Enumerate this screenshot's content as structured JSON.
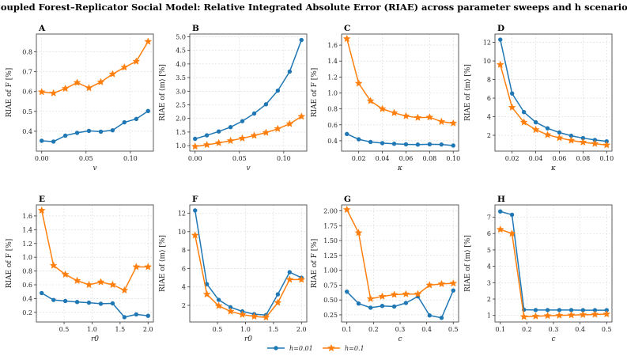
{
  "figure_title": "Coupled Forest–Replicator Social Model: Relative Integrated Absolute Error (RIAE) across parameter sweeps and h scenarios",
  "legend": [
    {
      "name": "h=0.01",
      "color": "#1f77b4",
      "marker": "circle"
    },
    {
      "name": "h=0.1",
      "color": "#ff7f0e",
      "marker": "star"
    }
  ],
  "chart_data": [
    {
      "panel": "A",
      "type": "line",
      "xlabel": "v",
      "ylabel": "RIAE of F [%]",
      "xlim": [
        -0.006,
        0.126
      ],
      "ylim": [
        0.3,
        0.89
      ],
      "xticks": [
        0.0,
        0.05,
        0.1
      ],
      "xtick_labels": [
        "0.00",
        "0.05",
        "0.10"
      ],
      "yticks": [
        0.4,
        0.5,
        0.6,
        0.7,
        0.8
      ],
      "ytick_labels": [
        "0.4",
        "0.5",
        "0.6",
        "0.7",
        "0.8"
      ],
      "x": [
        0.0,
        0.0133,
        0.0267,
        0.04,
        0.0533,
        0.0667,
        0.08,
        0.0933,
        0.1067,
        0.12
      ],
      "series": [
        {
          "name": "h=0.01",
          "values": [
            0.352,
            0.348,
            0.378,
            0.392,
            0.402,
            0.398,
            0.405,
            0.445,
            0.462,
            0.502
          ]
        },
        {
          "name": "h=0.1",
          "values": [
            0.598,
            0.592,
            0.615,
            0.645,
            0.618,
            0.648,
            0.688,
            0.722,
            0.752,
            0.852
          ]
        }
      ]
    },
    {
      "panel": "B",
      "type": "line",
      "xlabel": "v",
      "ylabel": "RIAE of ⟨m⟩ [%]",
      "xlim": [
        -0.006,
        0.126
      ],
      "ylim": [
        0.8,
        5.1
      ],
      "xticks": [
        0.0,
        0.05,
        0.1
      ],
      "xtick_labels": [
        "0.00",
        "0.05",
        "0.10"
      ],
      "yticks": [
        1.0,
        1.5,
        2.0,
        2.5,
        3.0,
        3.5,
        4.0,
        4.5,
        5.0
      ],
      "ytick_labels": [
        "1.0",
        "1.5",
        "2.0",
        "2.5",
        "3.0",
        "3.5",
        "4.0",
        "4.5",
        "5.0"
      ],
      "x": [
        0.0,
        0.0133,
        0.0267,
        0.04,
        0.0533,
        0.0667,
        0.08,
        0.0933,
        0.1067,
        0.12
      ],
      "series": [
        {
          "name": "h=0.01",
          "values": [
            1.25,
            1.38,
            1.52,
            1.68,
            1.9,
            2.18,
            2.52,
            3.02,
            3.72,
            4.88
          ]
        },
        {
          "name": "h=0.1",
          "values": [
            0.97,
            1.03,
            1.1,
            1.18,
            1.27,
            1.37,
            1.48,
            1.62,
            1.8,
            2.07
          ]
        }
      ]
    },
    {
      "panel": "C",
      "type": "line",
      "xlabel": "κ",
      "ylabel": "RIAE of F [%]",
      "xlim": [
        0.0055,
        0.1045
      ],
      "ylim": [
        0.27,
        1.74
      ],
      "xticks": [
        0.02,
        0.04,
        0.06,
        0.08,
        0.1
      ],
      "xtick_labels": [
        "0.02",
        "0.04",
        "0.06",
        "0.08",
        "0.10"
      ],
      "yticks": [
        0.4,
        0.6,
        0.8,
        1.0,
        1.2,
        1.4,
        1.6
      ],
      "ytick_labels": [
        "0.4",
        "0.6",
        "0.8",
        "1.0",
        "1.2",
        "1.4",
        "1.6"
      ],
      "x": [
        0.01,
        0.02,
        0.03,
        0.04,
        0.05,
        0.06,
        0.07,
        0.08,
        0.09,
        0.1
      ],
      "series": [
        {
          "name": "h=0.01",
          "values": [
            0.485,
            0.418,
            0.385,
            0.37,
            0.362,
            0.355,
            0.352,
            0.356,
            0.353,
            0.34
          ]
        },
        {
          "name": "h=0.1",
          "values": [
            1.68,
            1.12,
            0.9,
            0.8,
            0.75,
            0.71,
            0.69,
            0.695,
            0.64,
            0.62
          ]
        }
      ]
    },
    {
      "panel": "D",
      "type": "line",
      "xlabel": "κ",
      "ylabel": "RIAE of ⟨m⟩ [%]",
      "xlim": [
        0.0055,
        0.1045
      ],
      "ylim": [
        0.3,
        12.9
      ],
      "xticks": [
        0.02,
        0.04,
        0.06,
        0.08,
        0.1
      ],
      "xtick_labels": [
        "0.02",
        "0.04",
        "0.06",
        "0.08",
        "0.10"
      ],
      "yticks": [
        2,
        4,
        6,
        8,
        10,
        12
      ],
      "ytick_labels": [
        "2",
        "4",
        "6",
        "8",
        "10",
        "12"
      ],
      "x": [
        0.01,
        0.02,
        0.03,
        0.04,
        0.05,
        0.06,
        0.07,
        0.08,
        0.09,
        0.1
      ],
      "series": [
        {
          "name": "h=0.01",
          "values": [
            12.3,
            6.5,
            4.5,
            3.4,
            2.75,
            2.3,
            1.95,
            1.7,
            1.5,
            1.35
          ]
        },
        {
          "name": "h=0.1",
          "values": [
            9.6,
            5.0,
            3.4,
            2.6,
            2.05,
            1.72,
            1.45,
            1.25,
            1.1,
            0.95
          ]
        }
      ]
    },
    {
      "panel": "E",
      "type": "line",
      "xlabel": "r0",
      "ylabel": "RIAE of F [%]",
      "xlim": [
        0.005,
        2.095
      ],
      "ylim": [
        0.06,
        1.76
      ],
      "xticks": [
        0.5,
        1.0,
        1.5,
        2.0
      ],
      "xtick_labels": [
        "0.5",
        "1.0",
        "1.5",
        "2.0"
      ],
      "yticks": [
        0.2,
        0.4,
        0.6,
        0.8,
        1.0,
        1.2,
        1.4,
        1.6
      ],
      "ytick_labels": [
        "0.2",
        "0.4",
        "0.6",
        "0.8",
        "1.0",
        "1.2",
        "1.4",
        "1.6"
      ],
      "x": [
        0.1,
        0.311,
        0.522,
        0.733,
        0.944,
        1.156,
        1.367,
        1.578,
        1.789,
        2.0
      ],
      "series": [
        {
          "name": "h=0.01",
          "values": [
            0.48,
            0.38,
            0.365,
            0.35,
            0.34,
            0.325,
            0.33,
            0.13,
            0.17,
            0.15
          ]
        },
        {
          "name": "h=0.1",
          "values": [
            1.68,
            0.88,
            0.75,
            0.66,
            0.6,
            0.64,
            0.6,
            0.52,
            0.86,
            0.86
          ]
        }
      ]
    },
    {
      "panel": "F",
      "type": "line",
      "xlabel": "r0",
      "ylabel": "RIAE of ⟨m⟩ [%]",
      "xlim": [
        0.005,
        2.095
      ],
      "ylim": [
        0.2,
        12.9
      ],
      "xticks": [
        0.5,
        1.0,
        1.5,
        2.0
      ],
      "xtick_labels": [
        "0.5",
        "1.0",
        "1.5",
        "2.0"
      ],
      "yticks": [
        2,
        4,
        6,
        8,
        10,
        12
      ],
      "ytick_labels": [
        "2",
        "4",
        "6",
        "8",
        "10",
        "12"
      ],
      "x": [
        0.1,
        0.311,
        0.522,
        0.733,
        0.944,
        1.156,
        1.367,
        1.578,
        1.789,
        2.0
      ],
      "series": [
        {
          "name": "h=0.01",
          "values": [
            12.3,
            4.3,
            2.6,
            1.8,
            1.35,
            1.05,
            0.95,
            3.2,
            5.6,
            5.0
          ]
        },
        {
          "name": "h=0.1",
          "values": [
            9.6,
            3.2,
            1.95,
            1.35,
            1.0,
            0.8,
            0.7,
            2.3,
            4.8,
            4.8
          ]
        }
      ]
    },
    {
      "panel": "G",
      "type": "line",
      "xlabel": "c",
      "ylabel": "RIAE of F [%]",
      "xlim": [
        0.08,
        0.52
      ],
      "ylim": [
        0.13,
        2.1
      ],
      "xticks": [
        0.1,
        0.2,
        0.3,
        0.4,
        0.5
      ],
      "xtick_labels": [
        "0.1",
        "0.2",
        "0.3",
        "0.4",
        "0.5"
      ],
      "yticks": [
        0.25,
        0.5,
        0.75,
        1.0,
        1.25,
        1.5,
        1.75,
        2.0
      ],
      "ytick_labels": [
        "0.25",
        "0.50",
        "0.75",
        "1.00",
        "1.25",
        "1.50",
        "1.75",
        "2.00"
      ],
      "x": [
        0.1,
        0.144,
        0.189,
        0.233,
        0.278,
        0.322,
        0.367,
        0.411,
        0.456,
        0.5
      ],
      "series": [
        {
          "name": "h=0.01",
          "values": [
            0.64,
            0.44,
            0.37,
            0.4,
            0.39,
            0.45,
            0.56,
            0.24,
            0.2,
            0.66
          ]
        },
        {
          "name": "h=0.1",
          "values": [
            2.02,
            1.63,
            0.52,
            0.56,
            0.59,
            0.6,
            0.6,
            0.75,
            0.77,
            0.78
          ]
        }
      ]
    },
    {
      "panel": "H",
      "type": "line",
      "xlabel": "c",
      "ylabel": "RIAE of ⟨m⟩ [%]",
      "xlim": [
        0.08,
        0.52
      ],
      "ylim": [
        0.6,
        7.75
      ],
      "xticks": [
        0.1,
        0.2,
        0.3,
        0.4,
        0.5
      ],
      "xtick_labels": [
        "0.1",
        "0.2",
        "0.3",
        "0.4",
        "0.5"
      ],
      "yticks": [
        1,
        2,
        3,
        4,
        5,
        6,
        7
      ],
      "ytick_labels": [
        "1",
        "2",
        "3",
        "4",
        "5",
        "6",
        "7"
      ],
      "x": [
        0.1,
        0.144,
        0.189,
        0.233,
        0.278,
        0.322,
        0.367,
        0.411,
        0.456,
        0.5
      ],
      "series": [
        {
          "name": "h=0.01",
          "values": [
            7.35,
            7.15,
            1.35,
            1.33,
            1.33,
            1.33,
            1.33,
            1.32,
            1.32,
            1.32
          ]
        },
        {
          "name": "h=0.1",
          "values": [
            6.25,
            6.0,
            0.92,
            0.95,
            0.98,
            1.0,
            1.02,
            1.04,
            1.06,
            1.08
          ]
        }
      ]
    }
  ]
}
